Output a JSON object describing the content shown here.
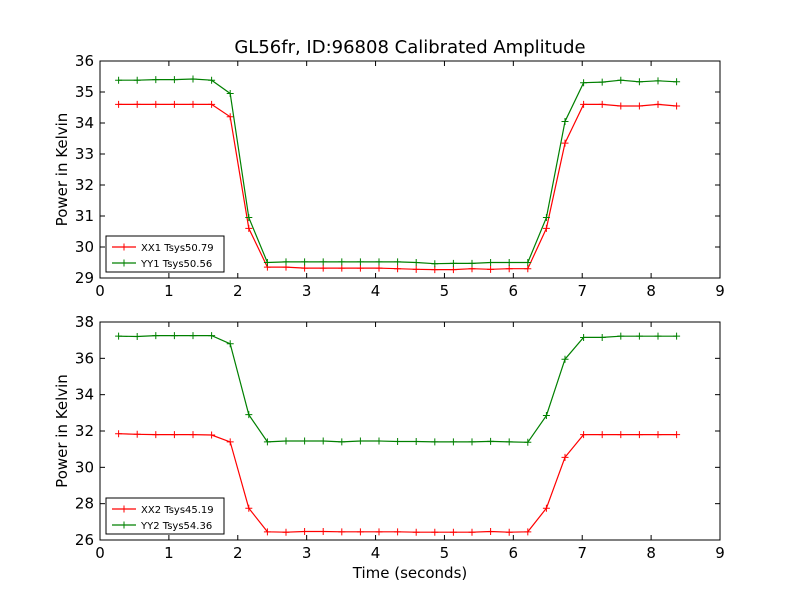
{
  "title": "GL56fr, ID:96808 Calibrated Amplitude",
  "xlabel": "Time (seconds)",
  "chart_data": [
    {
      "type": "line",
      "title": "GL56fr, ID:96808 Calibrated Amplitude",
      "xlabel": "",
      "ylabel": "Power in Kelvin",
      "xlim": [
        0,
        9
      ],
      "ylim": [
        29,
        36
      ],
      "xticks": [
        0,
        1,
        2,
        3,
        4,
        5,
        6,
        7,
        8,
        9
      ],
      "yticks": [
        29,
        30,
        31,
        32,
        33,
        34,
        35,
        36
      ],
      "grid": false,
      "legend_position": "lower-left",
      "x": [
        0.27,
        0.54,
        0.81,
        1.08,
        1.35,
        1.62,
        1.89,
        2.16,
        2.43,
        2.7,
        2.97,
        3.24,
        3.51,
        3.78,
        4.05,
        4.32,
        4.59,
        4.86,
        5.13,
        5.4,
        5.67,
        5.94,
        6.21,
        6.48,
        6.75,
        7.02,
        7.29,
        7.56,
        7.83,
        8.1,
        8.37
      ],
      "series": [
        {
          "name": "XX1 Tsys50.79",
          "color": "#ff0000",
          "values": [
            34.6,
            34.6,
            34.6,
            34.6,
            34.6,
            34.6,
            34.2,
            30.6,
            29.35,
            29.35,
            29.32,
            29.32,
            29.32,
            29.32,
            29.32,
            29.3,
            29.28,
            29.27,
            29.27,
            29.3,
            29.28,
            29.3,
            29.3,
            30.6,
            33.35,
            34.6,
            34.6,
            34.55,
            34.55,
            34.6,
            34.55
          ]
        },
        {
          "name": "YY1 Tsys50.56",
          "color": "#008000",
          "values": [
            35.38,
            35.38,
            35.4,
            35.4,
            35.42,
            35.38,
            34.95,
            30.95,
            29.5,
            29.52,
            29.52,
            29.52,
            29.52,
            29.52,
            29.52,
            29.52,
            29.5,
            29.46,
            29.47,
            29.47,
            29.5,
            29.5,
            29.5,
            30.95,
            34.05,
            35.3,
            35.32,
            35.38,
            35.33,
            35.36,
            35.33
          ]
        }
      ]
    },
    {
      "type": "line",
      "xlabel": "Time (seconds)",
      "ylabel": "Power in Kelvin",
      "xlim": [
        0,
        9
      ],
      "ylim": [
        26,
        38
      ],
      "xticks": [
        0,
        1,
        2,
        3,
        4,
        5,
        6,
        7,
        8,
        9
      ],
      "yticks": [
        26,
        28,
        30,
        32,
        34,
        36,
        38
      ],
      "grid": false,
      "legend_position": "lower-left",
      "x": [
        0.27,
        0.54,
        0.81,
        1.08,
        1.35,
        1.62,
        1.89,
        2.16,
        2.43,
        2.7,
        2.97,
        3.24,
        3.51,
        3.78,
        4.05,
        4.32,
        4.59,
        4.86,
        5.13,
        5.4,
        5.67,
        5.94,
        6.21,
        6.48,
        6.75,
        7.02,
        7.29,
        7.56,
        7.83,
        8.1,
        8.37
      ],
      "series": [
        {
          "name": "XX2 Tsys45.19",
          "color": "#ff0000",
          "values": [
            31.85,
            31.82,
            31.8,
            31.8,
            31.8,
            31.78,
            31.4,
            27.75,
            26.45,
            26.43,
            26.47,
            26.47,
            26.45,
            26.45,
            26.45,
            26.45,
            26.43,
            26.43,
            26.43,
            26.43,
            26.47,
            26.43,
            26.45,
            27.75,
            30.55,
            31.8,
            31.8,
            31.8,
            31.8,
            31.8,
            31.8
          ]
        },
        {
          "name": "YY2 Tsys54.36",
          "color": "#008000",
          "values": [
            37.22,
            37.2,
            37.25,
            37.25,
            37.25,
            37.25,
            36.8,
            32.9,
            31.4,
            31.45,
            31.45,
            31.45,
            31.4,
            31.45,
            31.45,
            31.42,
            31.42,
            31.4,
            31.4,
            31.4,
            31.43,
            31.4,
            31.38,
            32.85,
            35.95,
            37.15,
            37.15,
            37.22,
            37.22,
            37.22,
            37.22
          ]
        }
      ]
    }
  ]
}
